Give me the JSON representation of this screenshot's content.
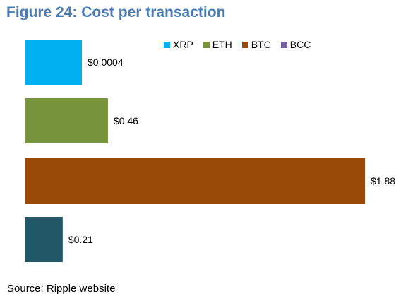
{
  "figure": {
    "title": "Figure 24: Cost per transaction",
    "source": "Source: Ripple website"
  },
  "chart_data": {
    "type": "bar",
    "orientation": "horizontal",
    "categories": [
      "XRP",
      "ETH",
      "BTC",
      "BCC"
    ],
    "values": [
      0.0004,
      0.46,
      1.88,
      0.21
    ],
    "labels": [
      "$0.0004",
      "$0.46",
      "$1.88",
      "$0.21"
    ],
    "colors": [
      "#00b0f0",
      "#77933c",
      "#984807",
      "#215868"
    ],
    "title": "Figure 24: Cost per transaction",
    "xlabel": "",
    "ylabel": "",
    "xlim": [
      0,
      2
    ],
    "grid": false,
    "legend": {
      "position": "top",
      "items": [
        {
          "label": "XRP",
          "color": "#00b0f0"
        },
        {
          "label": "ETH",
          "color": "#77933c"
        },
        {
          "label": "BTC",
          "color": "#984807"
        },
        {
          "label": "BCC",
          "color": "#7060a0"
        }
      ]
    }
  }
}
